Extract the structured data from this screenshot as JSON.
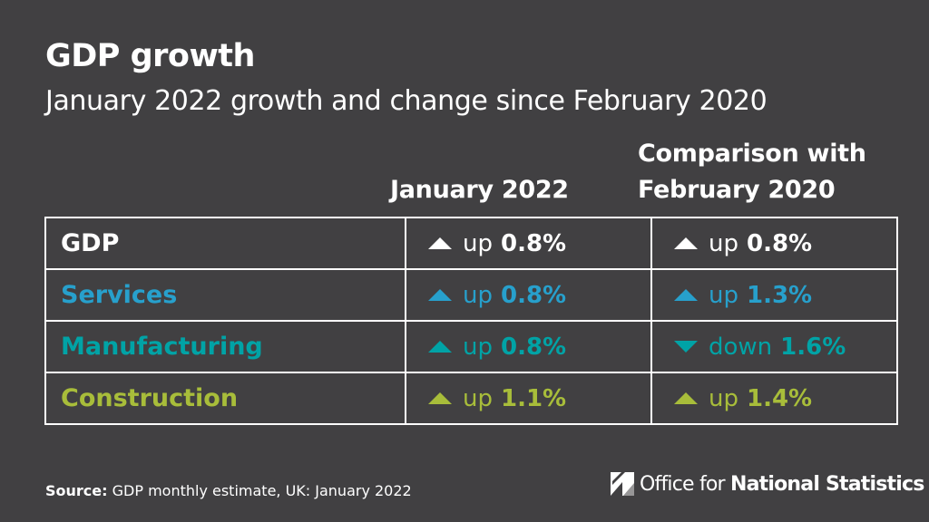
{
  "title": "GDP growth",
  "subtitle": "January 2022 growth and change since February 2020",
  "columns": {
    "jan": "January 2022",
    "cmp_line1": "Comparison with",
    "cmp_line2": "February 2020"
  },
  "rows": [
    {
      "label": "GDP",
      "color": "#ffffff",
      "jan": {
        "dir": "up",
        "word": "up",
        "value": "0.8%"
      },
      "cmp": {
        "dir": "up",
        "word": "up",
        "value": "0.8%"
      }
    },
    {
      "label": "Services",
      "color": "#27a0cc",
      "jan": {
        "dir": "up",
        "word": "up",
        "value": "0.8%"
      },
      "cmp": {
        "dir": "up",
        "word": "up",
        "value": "1.3%"
      }
    },
    {
      "label": "Manufacturing",
      "color": "#00a3a6",
      "jan": {
        "dir": "up",
        "word": "up",
        "value": "0.8%"
      },
      "cmp": {
        "dir": "down",
        "word": "down",
        "value": "1.6%"
      }
    },
    {
      "label": "Construction",
      "color": "#a8bd3a",
      "jan": {
        "dir": "up",
        "word": "up",
        "value": "1.1%"
      },
      "cmp": {
        "dir": "up",
        "word": "up",
        "value": "1.4%"
      }
    }
  ],
  "source": {
    "label": "Source:",
    "text": " GDP monthly estimate, UK: January 2022"
  },
  "brand": {
    "part1": "Office for ",
    "part2": "National Statistics",
    "icon": "ons-logo-icon"
  }
}
